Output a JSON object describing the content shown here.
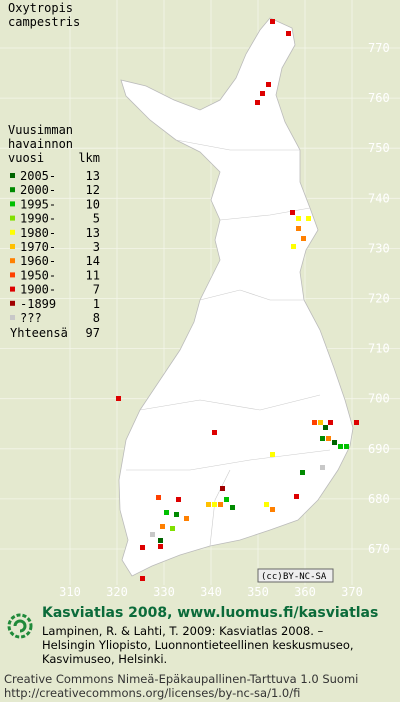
{
  "title": [
    "Oxytropis",
    "campestris"
  ],
  "legend": {
    "heading": [
      "Vuusimman",
      "havainnon",
      "vuosi"
    ],
    "count_heading": "lkm",
    "rows": [
      {
        "label": "2005-",
        "count": 13,
        "color": "#006400"
      },
      {
        "label": "2000-",
        "count": 12,
        "color": "#008a00"
      },
      {
        "label": "1995-",
        "count": 10,
        "color": "#00c000"
      },
      {
        "label": "1990-",
        "count": 5,
        "color": "#80e000"
      },
      {
        "label": "1980-",
        "count": 13,
        "color": "#ffff00"
      },
      {
        "label": "1970-",
        "count": 3,
        "color": "#ffc000"
      },
      {
        "label": "1960-",
        "count": 14,
        "color": "#ff8000"
      },
      {
        "label": "1950-",
        "count": 11,
        "color": "#ff4000"
      },
      {
        "label": "1900-",
        "count": 7,
        "color": "#dd0000"
      },
      {
        "label": "-1899",
        "count": 1,
        "color": "#a00000"
      },
      {
        "label": "???",
        "count": 8,
        "color": "#c8c8c8"
      }
    ],
    "total": {
      "label": "Yhteensä",
      "count": 97
    }
  },
  "grid": {
    "yticks": [
      770,
      760,
      750,
      740,
      730,
      720,
      710,
      700,
      690,
      680,
      670
    ],
    "xticks": [
      310,
      320,
      330,
      340,
      350,
      360,
      370
    ]
  },
  "badge": [
    "(cc)",
    "BY-NC-SA"
  ],
  "footer": {
    "heading": "Kasviatlas 2008, www.luomus.fi/kasviatlas",
    "citation": [
      "Lampinen, R. & Lahti, T. 2009: Kasviatlas 2008. –",
      "Helsingin Yliopisto, Luonnontieteellinen keskusmuseo,",
      "Kasvimuseo, Helsinki."
    ],
    "license": [
      "Creative Commons Nimeä-Epäkaupallinen-Tarttuva 1.0 Suomi",
      "http://creativecommons.org/licenses/by-nc-sa/1.0/fi"
    ]
  }
}
